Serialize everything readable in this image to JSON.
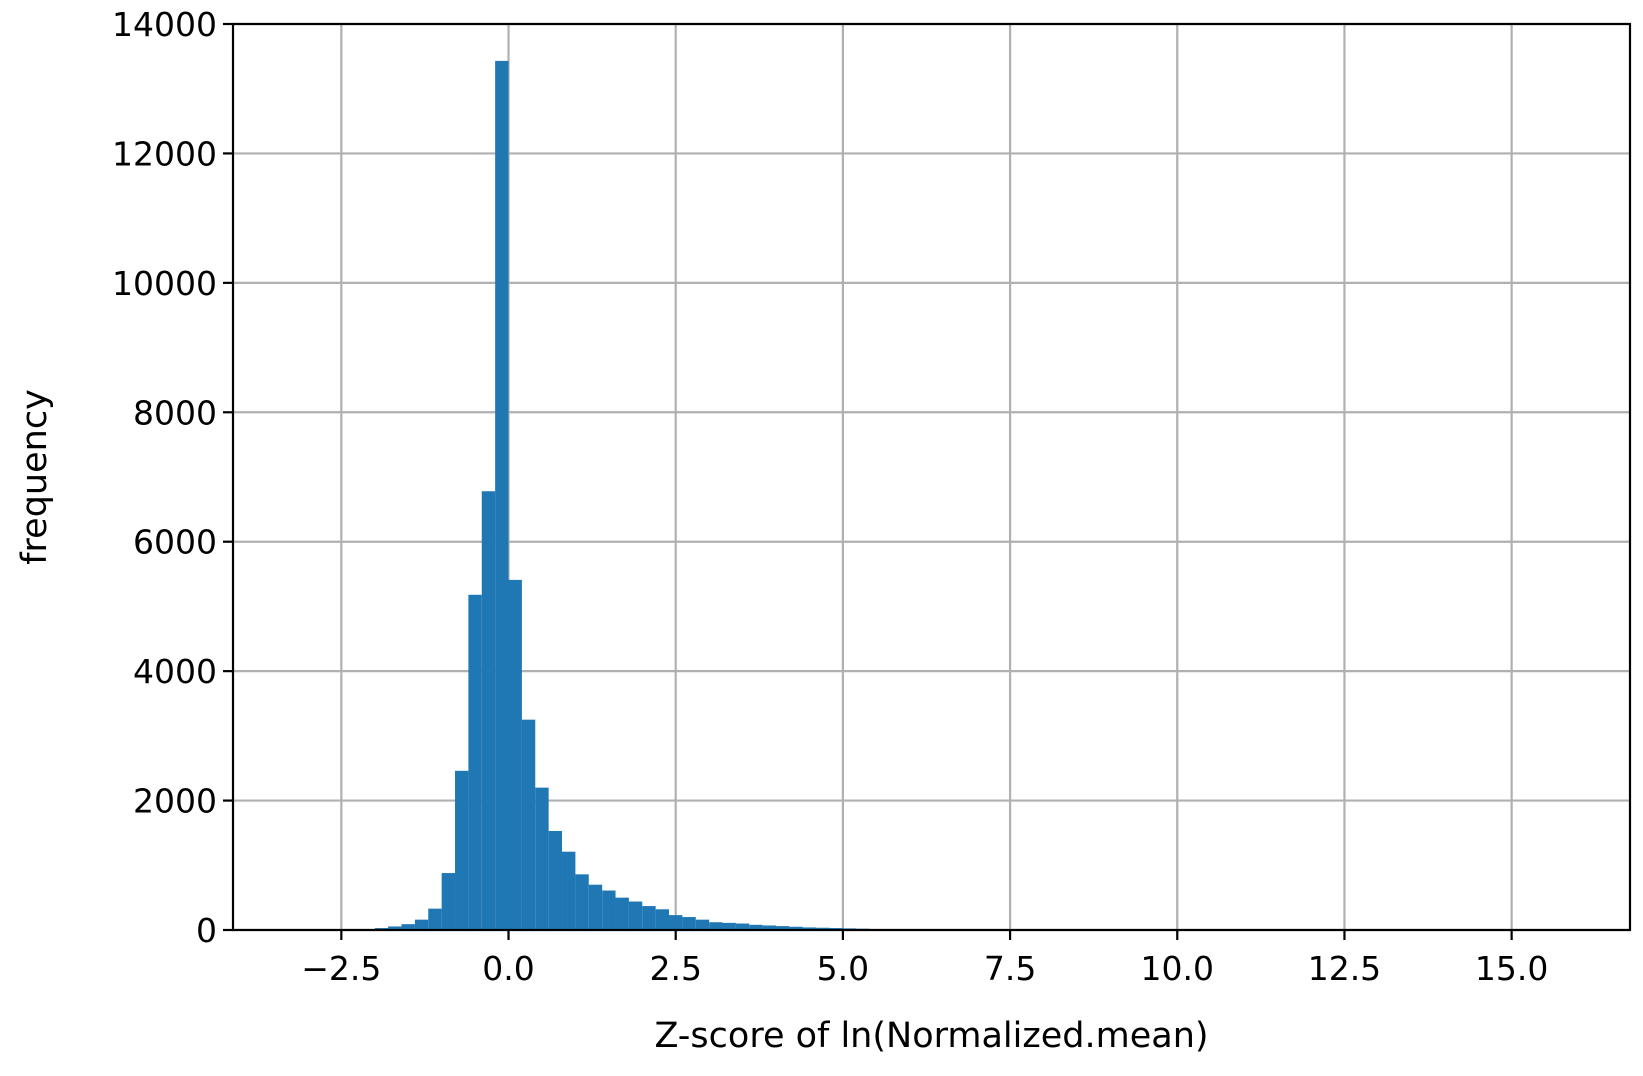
{
  "chart_data": {
    "type": "bar",
    "subtype": "histogram",
    "title": "",
    "xlabel": "Z-score of ln(Normalized.mean)",
    "ylabel": "frequency",
    "xlim": [
      -4.12,
      16.77
    ],
    "ylim": [
      0,
      14000
    ],
    "xticks": [
      -2.5,
      0.0,
      2.5,
      5.0,
      7.5,
      10.0,
      12.5,
      15.0
    ],
    "xtick_labels": [
      "−2.5",
      "0.0",
      "2.5",
      "5.0",
      "7.5",
      "10.0",
      "12.5",
      "15.0"
    ],
    "yticks": [
      0,
      2000,
      4000,
      6000,
      8000,
      10000,
      12000,
      14000
    ],
    "ytick_labels": [
      "0",
      "2000",
      "4000",
      "6000",
      "8000",
      "10000",
      "12000",
      "14000"
    ],
    "grid": true,
    "bar_color": "#1f77b4",
    "bin_width": 0.2,
    "bins": [
      {
        "x0": -2.2,
        "x1": -2.0,
        "count": 15
      },
      {
        "x0": -2.0,
        "x1": -1.8,
        "count": 30
      },
      {
        "x0": -1.8,
        "x1": -1.6,
        "count": 55
      },
      {
        "x0": -1.6,
        "x1": -1.4,
        "count": 90
      },
      {
        "x0": -1.4,
        "x1": -1.2,
        "count": 160
      },
      {
        "x0": -1.2,
        "x1": -1.0,
        "count": 330
      },
      {
        "x0": -1.0,
        "x1": -0.8,
        "count": 880
      },
      {
        "x0": -0.8,
        "x1": -0.6,
        "count": 2460
      },
      {
        "x0": -0.6,
        "x1": -0.4,
        "count": 5180
      },
      {
        "x0": -0.4,
        "x1": -0.2,
        "count": 6780
      },
      {
        "x0": -0.2,
        "x1": 0.0,
        "count": 13430
      },
      {
        "x0": 0.0,
        "x1": 0.2,
        "count": 5410
      },
      {
        "x0": 0.2,
        "x1": 0.4,
        "count": 3250
      },
      {
        "x0": 0.4,
        "x1": 0.6,
        "count": 2200
      },
      {
        "x0": 0.6,
        "x1": 0.8,
        "count": 1530
      },
      {
        "x0": 0.8,
        "x1": 1.0,
        "count": 1210
      },
      {
        "x0": 1.0,
        "x1": 1.2,
        "count": 860
      },
      {
        "x0": 1.2,
        "x1": 1.4,
        "count": 700
      },
      {
        "x0": 1.4,
        "x1": 1.6,
        "count": 610
      },
      {
        "x0": 1.6,
        "x1": 1.8,
        "count": 500
      },
      {
        "x0": 1.8,
        "x1": 2.0,
        "count": 440
      },
      {
        "x0": 2.0,
        "x1": 2.2,
        "count": 370
      },
      {
        "x0": 2.2,
        "x1": 2.4,
        "count": 320
      },
      {
        "x0": 2.4,
        "x1": 2.6,
        "count": 230
      },
      {
        "x0": 2.6,
        "x1": 2.8,
        "count": 200
      },
      {
        "x0": 2.8,
        "x1": 3.0,
        "count": 160
      },
      {
        "x0": 3.0,
        "x1": 3.2,
        "count": 120
      },
      {
        "x0": 3.2,
        "x1": 3.4,
        "count": 110
      },
      {
        "x0": 3.4,
        "x1": 3.6,
        "count": 100
      },
      {
        "x0": 3.6,
        "x1": 3.8,
        "count": 80
      },
      {
        "x0": 3.8,
        "x1": 4.0,
        "count": 70
      },
      {
        "x0": 4.0,
        "x1": 4.2,
        "count": 60
      },
      {
        "x0": 4.2,
        "x1": 4.4,
        "count": 50
      },
      {
        "x0": 4.4,
        "x1": 4.6,
        "count": 40
      },
      {
        "x0": 4.6,
        "x1": 4.8,
        "count": 35
      },
      {
        "x0": 4.8,
        "x1": 5.0,
        "count": 30
      },
      {
        "x0": 5.0,
        "x1": 5.2,
        "count": 25
      },
      {
        "x0": 5.2,
        "x1": 5.4,
        "count": 20
      },
      {
        "x0": 5.4,
        "x1": 5.6,
        "count": 15
      },
      {
        "x0": 5.6,
        "x1": 5.8,
        "count": 10
      },
      {
        "x0": 5.8,
        "x1": 6.0,
        "count": 5
      }
    ]
  }
}
